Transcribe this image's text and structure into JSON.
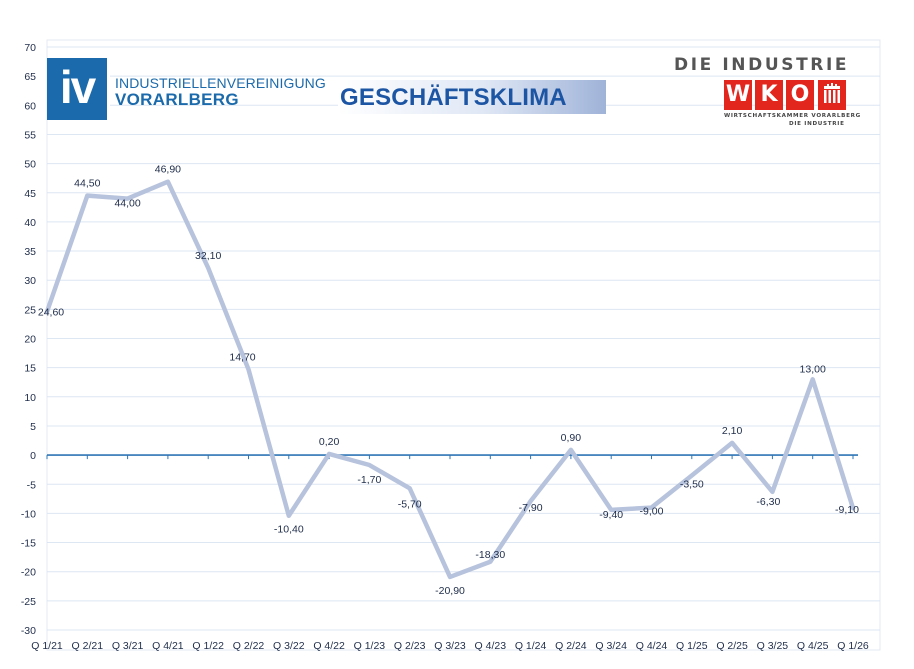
{
  "chart_data": {
    "type": "line",
    "title": "GESCHÄFTSKLIMA",
    "xlabel": "",
    "ylabel": "",
    "categories": [
      "Q 1/21",
      "Q 2/21",
      "Q 3/21",
      "Q 4/21",
      "Q 1/22",
      "Q 2/22",
      "Q 3/22",
      "Q 4/22",
      "Q 1/23",
      "Q 2/23",
      "Q 3/23",
      "Q 4/23",
      "Q 1/24",
      "Q 2/24",
      "Q 3/24",
      "Q 4/24",
      "Q 1/25",
      "Q 2/25",
      "Q 3/25",
      "Q 4/25",
      "Q 1/26"
    ],
    "values": [
      24.6,
      44.5,
      44.0,
      46.9,
      32.1,
      14.7,
      -10.4,
      0.2,
      -1.7,
      -5.7,
      -20.9,
      -18.3,
      -7.9,
      0.9,
      -9.4,
      -9.0,
      -3.5,
      2.1,
      -6.3,
      13.0,
      -9.1
    ],
    "data_labels": [
      "24,60",
      "44,50",
      "44,00",
      "46,90",
      "32,10",
      "14,70",
      "-10,40",
      "0,20",
      "-1,70",
      "-5,70",
      "-20,90",
      "-18,30",
      "-7,90",
      "0,90",
      "-9,40",
      "-9,00",
      "-3,50",
      "2,10",
      "-6,30",
      "13,00",
      "-9,10"
    ],
    "ylim": [
      -30,
      70
    ],
    "yticks": [
      70,
      65,
      60,
      55,
      50,
      45,
      40,
      35,
      30,
      25,
      20,
      15,
      10,
      5,
      0,
      -5,
      -10,
      -15,
      -20,
      -25,
      -30
    ],
    "grid": true,
    "legend": "none",
    "line_color": "#b7c3dc",
    "zero_axis_color": "#2e75b6",
    "grid_color": "#dde6f3"
  },
  "logos": {
    "iv": {
      "mark": "iv",
      "line1": "INDUSTRIELLENVEREINIGUNG",
      "line2": "VORARLBERG"
    },
    "wko": {
      "top": "DIE INDUSTRIE",
      "letters": [
        "W",
        "K",
        "O"
      ],
      "sub1": "WIRTSCHAFTSKAMMER VORARLBERG",
      "sub2": "DIE INDUSTRIE",
      "crest_icon": "vorarlberg-crest-icon"
    }
  }
}
